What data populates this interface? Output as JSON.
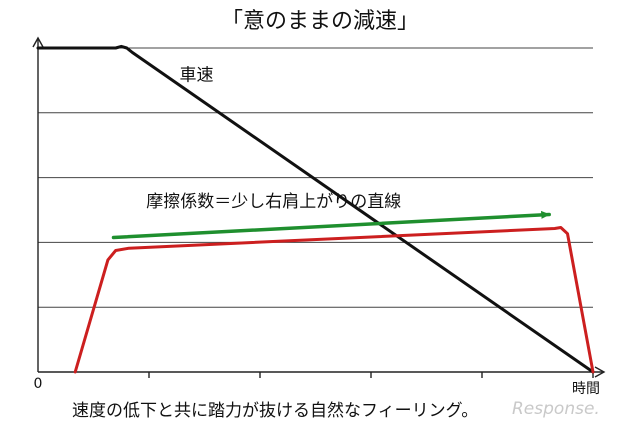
{
  "page": {
    "caption": "速度の低下と共に踏力が抜ける自然なフィーリング。",
    "watermark": "Response."
  },
  "chart_data": {
    "type": "line",
    "title": "「意のままの減速」",
    "xlabel": "時間",
    "ylabel": "",
    "origin_label": "0",
    "xlim": [
      0,
      100
    ],
    "ylim": [
      0,
      100
    ],
    "grid": true,
    "legend": "none",
    "series": [
      {
        "name": "車速",
        "color": "#111111",
        "x": [
          0,
          14,
          15,
          16,
          17,
          100
        ],
        "y": [
          100,
          100,
          100.5,
          100,
          98.6,
          0
        ]
      },
      {
        "name": "摩擦係数＝少し右肩上がりの直線",
        "color": "#cc1f1f",
        "x": [
          6.7,
          12.6,
          14,
          16.4,
          93.1,
          94.2,
          95.4,
          100
        ],
        "y": [
          0,
          34.6,
          37.5,
          38.2,
          44.3,
          44.6,
          42.7,
          0
        ]
      },
      {
        "name": "",
        "color": "#1f8f2e",
        "arrow": true,
        "x": [
          13.6,
          92.1
        ],
        "y": [
          41.5,
          48.6
        ]
      }
    ],
    "annotations": [
      {
        "text": "車速",
        "x": 25.5,
        "y": 90
      },
      {
        "text": "摩擦係数＝少し右肩上がりの直線",
        "x": 19.5,
        "y": 51
      }
    ]
  }
}
